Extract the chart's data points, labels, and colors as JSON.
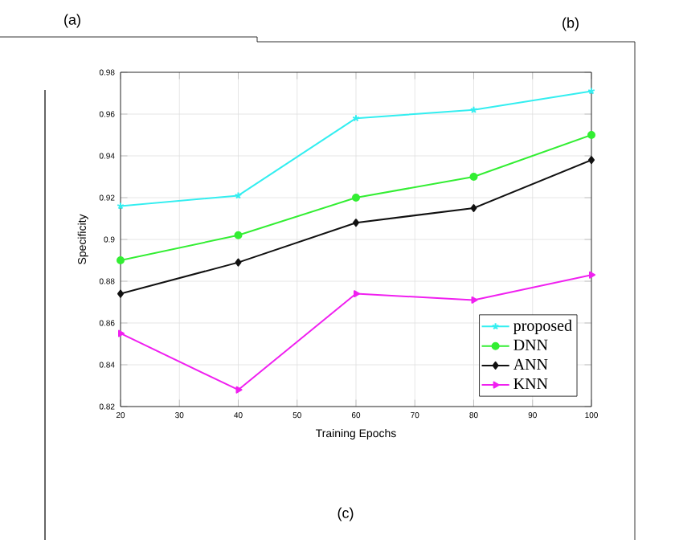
{
  "chart_data": {
    "type": "line",
    "xlabel": "Training Epochs",
    "ylabel": "Specificity",
    "annotations": [
      "(a)",
      "(b)",
      "(c)"
    ],
    "x": [
      20,
      40,
      60,
      80,
      100
    ],
    "series": [
      {
        "name": "proposed",
        "color": "#33eef0",
        "marker": "cross",
        "values": [
          0.916,
          0.921,
          0.958,
          0.962,
          0.971
        ]
      },
      {
        "name": "DNN",
        "color": "#33ee33",
        "marker": "circle",
        "values": [
          0.89,
          0.902,
          0.92,
          0.93,
          0.95
        ]
      },
      {
        "name": "ANN",
        "color": "#111111",
        "marker": "diamond",
        "values": [
          0.874,
          0.889,
          0.908,
          0.915,
          0.938
        ]
      },
      {
        "name": "KNN",
        "color": "#f020f0",
        "marker": "triangle",
        "values": [
          0.855,
          0.828,
          0.874,
          0.871,
          0.883
        ]
      }
    ],
    "xlim": [
      20,
      100
    ],
    "xticks": [
      20,
      30,
      40,
      50,
      60,
      70,
      80,
      90,
      100
    ],
    "ylim": [
      0.82,
      0.98
    ],
    "yticks": [
      0.82,
      0.84,
      0.86,
      0.88,
      {
        "value": 0.9,
        "label": "0.9"
      },
      0.92,
      0.94,
      0.96,
      0.98
    ],
    "grid": true,
    "legend": "bottom right",
    "line_style": "solid"
  }
}
